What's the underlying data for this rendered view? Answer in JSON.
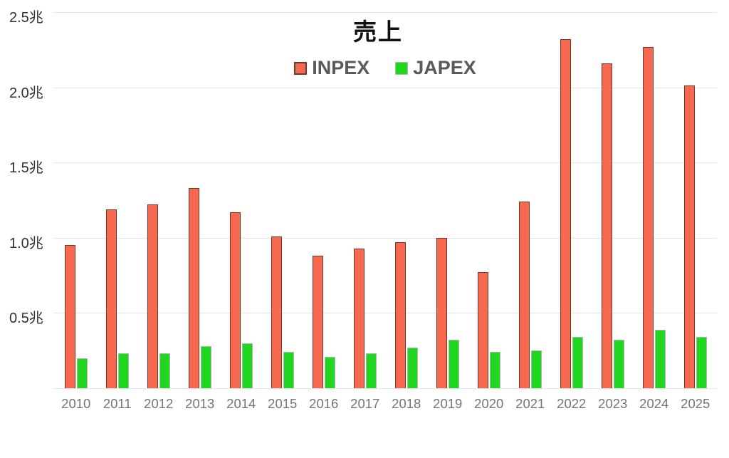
{
  "chart_data": {
    "type": "bar",
    "title": "売上",
    "categories": [
      "2010",
      "2011",
      "2012",
      "2013",
      "2014",
      "2015",
      "2016",
      "2017",
      "2018",
      "2019",
      "2020",
      "2021",
      "2022",
      "2023",
      "2024",
      "2025"
    ],
    "series": [
      {
        "name": "INPEX",
        "color": "#f7694f",
        "border_color": "#6f3a2e",
        "values": [
          0.95,
          1.19,
          1.22,
          1.33,
          1.17,
          1.01,
          0.88,
          0.93,
          0.97,
          1.0,
          0.77,
          1.24,
          2.32,
          2.16,
          2.27,
          2.01
        ]
      },
      {
        "name": "JAPEX",
        "color": "#1fd71f",
        "border_color": "#aab8aa",
        "values": [
          0.2,
          0.23,
          0.23,
          0.28,
          0.3,
          0.24,
          0.21,
          0.23,
          0.27,
          0.32,
          0.24,
          0.25,
          0.34,
          0.32,
          0.39,
          0.34
        ]
      }
    ],
    "unit": "兆",
    "ylim": [
      0,
      2.5
    ],
    "y_ticks": [
      {
        "value": 2.5,
        "label": "2.5兆"
      },
      {
        "value": 2.0,
        "label": "2.0兆"
      },
      {
        "value": 1.5,
        "label": "1.5兆"
      },
      {
        "value": 1.0,
        "label": "1.0兆"
      },
      {
        "value": 0.5,
        "label": "0.5兆"
      }
    ],
    "grid": true,
    "legend_position": "top-center"
  }
}
